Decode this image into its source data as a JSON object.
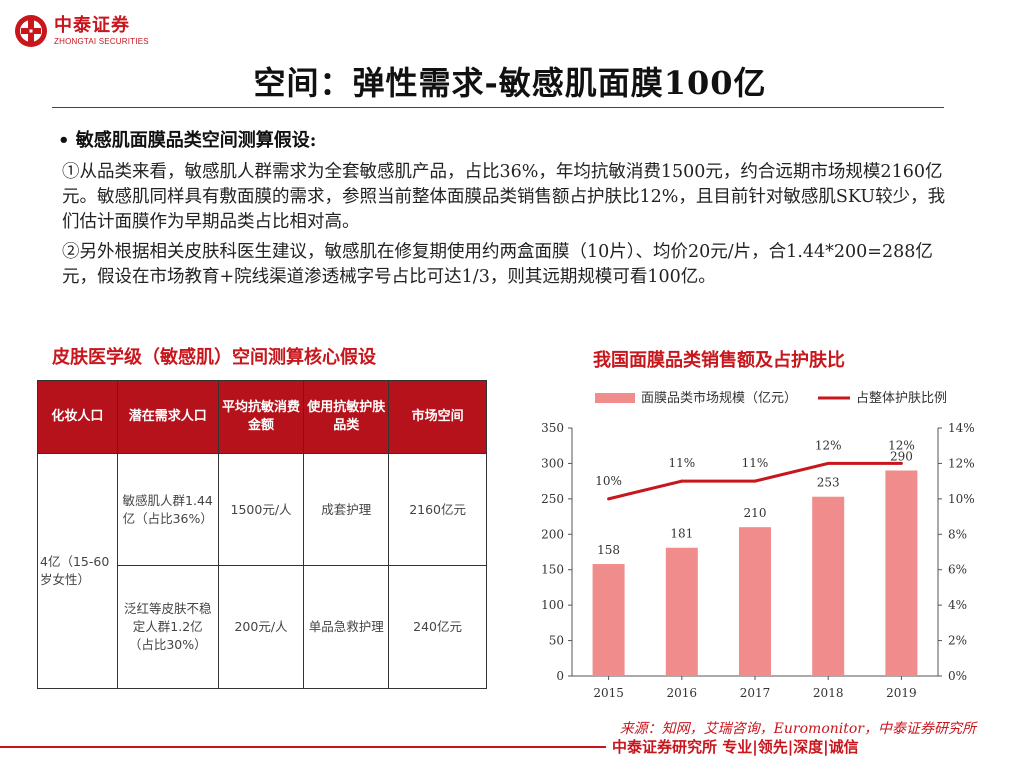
{
  "logo": {
    "name_cn": "中泰证券",
    "name_en": "ZHONGTAI SECURITIES"
  },
  "title": "空间：弹性需求-敏感肌面膜100亿",
  "section_heading": "• 敏感肌面膜品类空间测算假设:",
  "paragraphs": [
    "①从品类来看，敏感肌人群需求为全套敏感肌产品，占比36%，年均抗敏消费1500元，约合远期市场规模2160亿元。敏感肌同样具有敷面膜的需求，参照当前整体面膜品类销售额占护肤比12%，且目前针对敏感肌SKU较少，我们估计面膜作为早期品类占比相对高。",
    "②另外根据相关皮肤科医生建议，敏感肌在修复期使用约两盒面膜（10片）、均价20元/片，合1.44*200=288亿元，假设在市场教育+院线渠道渗透械字号占比可达1/3，则其远期规模可看100亿。"
  ],
  "table": {
    "title": "皮肤医学级（敏感肌）空间测算核心假设",
    "headers": [
      "化妆人口",
      "潜在需求人口",
      "平均抗敏消费金额",
      "使用抗敏护肤品类",
      "市场空间"
    ],
    "population": "4亿（15-60岁女性）",
    "rows": [
      {
        "group": "敏感肌人群1.44亿（占比36%）",
        "spend": "1500元/人",
        "category": "成套护理",
        "market": "2160亿元"
      },
      {
        "group": "泛红等皮肤不稳定人群1.2亿（占比30%）",
        "spend": "200元/人",
        "category": "单品急救护理",
        "market": "240亿元"
      }
    ]
  },
  "chart_data": {
    "type": "bar",
    "title": "我国面膜品类销售额及占护肤比",
    "categories": [
      "2015",
      "2016",
      "2017",
      "2018",
      "2019"
    ],
    "series": [
      {
        "name": "面膜品类市场规模（亿元）",
        "kind": "bar",
        "axis": "left",
        "values": [
          158,
          181,
          210,
          253,
          290
        ],
        "labels": [
          "158",
          "181",
          "210",
          "253",
          "290"
        ]
      },
      {
        "name": "占整体护肤比例",
        "kind": "line",
        "axis": "right",
        "values": [
          10,
          11,
          11,
          12,
          12
        ],
        "labels": [
          "10%",
          "11%",
          "11%",
          "12%",
          "12%"
        ]
      }
    ],
    "ylim_left": [
      0,
      350
    ],
    "left_ticks": [
      "0",
      "50",
      "100",
      "150",
      "200",
      "250",
      "300",
      "350"
    ],
    "ylim_right": [
      0,
      14
    ],
    "right_ticks": [
      "0%",
      "2%",
      "4%",
      "6%",
      "8%",
      "10%",
      "12%",
      "14%"
    ],
    "legend_position": "top",
    "grid": false,
    "colors": {
      "bar": "#f08c8c",
      "line": "#c8161d"
    }
  },
  "source": "来源：知网，艾瑞咨询，Euromonitor，中泰证券研究所",
  "footer": "中泰证券研究所 专业|领先|深度|诚信"
}
